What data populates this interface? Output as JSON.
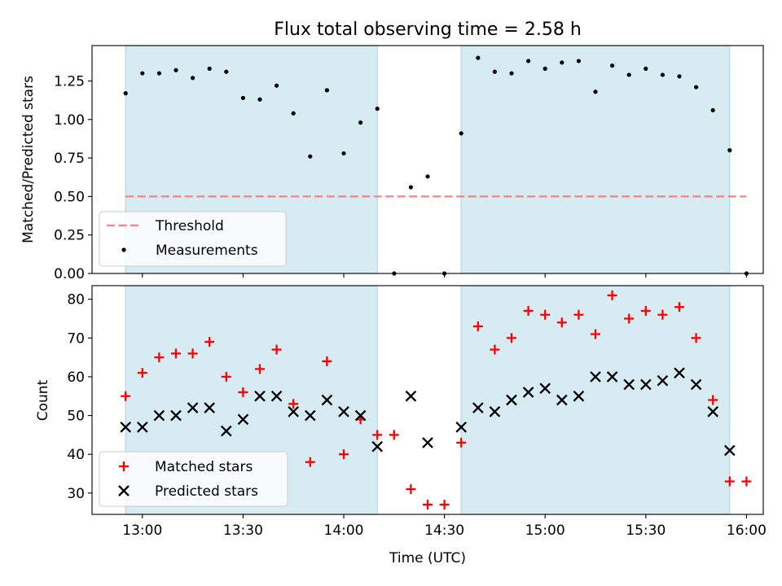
{
  "chart_data": [
    {
      "type": "scatter",
      "title": "Flux total observing time = 2.58 h",
      "ylabel": "Matched/Predicted stars",
      "ylim": [
        0,
        1.48
      ],
      "yticks": [
        0.0,
        0.25,
        0.5,
        0.75,
        1.0,
        1.25
      ],
      "ytick_labels": [
        "0.00",
        "0.25",
        "0.50",
        "0.75",
        "1.00",
        "1.25"
      ],
      "threshold": 0.5,
      "legend": [
        "Threshold",
        "Measurements"
      ],
      "legend_position": "lower-left",
      "shaded_intervals": [
        [
          "12:55",
          "14:10"
        ],
        [
          "14:35",
          "15:55"
        ]
      ],
      "series": [
        {
          "name": "Measurements",
          "x": [
            "12:55",
            "13:00",
            "13:05",
            "13:10",
            "13:15",
            "13:20",
            "13:25",
            "13:30",
            "13:35",
            "13:40",
            "13:45",
            "13:50",
            "13:55",
            "14:00",
            "14:05",
            "14:10",
            "14:15",
            "14:20",
            "14:25",
            "14:30",
            "14:35",
            "14:40",
            "14:45",
            "14:50",
            "14:55",
            "15:00",
            "15:05",
            "15:10",
            "15:15",
            "15:20",
            "15:25",
            "15:30",
            "15:35",
            "15:40",
            "15:45",
            "15:50",
            "15:55",
            "16:00"
          ],
          "values": [
            1.17,
            1.3,
            1.3,
            1.32,
            1.27,
            1.33,
            1.31,
            1.14,
            1.13,
            1.22,
            1.04,
            0.76,
            1.19,
            0.78,
            0.98,
            1.07,
            0.0,
            0.56,
            0.63,
            0.0,
            0.91,
            1.4,
            1.31,
            1.3,
            1.38,
            1.33,
            1.37,
            1.38,
            1.18,
            1.35,
            1.29,
            1.33,
            1.29,
            1.28,
            1.21,
            1.06,
            0.8,
            0.0
          ]
        }
      ]
    },
    {
      "type": "scatter",
      "xlabel": "Time (UTC)",
      "ylabel": "Count",
      "ylim": [
        24.5,
        83.5
      ],
      "yticks": [
        30,
        40,
        50,
        60,
        70,
        80
      ],
      "ytick_labels": [
        "30",
        "40",
        "50",
        "60",
        "70",
        "80"
      ],
      "xticks": [
        "13:00",
        "13:30",
        "14:00",
        "14:30",
        "15:00",
        "15:30",
        "16:00"
      ],
      "xlim": [
        "12:45",
        "16:05"
      ],
      "legend": [
        "Matched stars",
        "Predicted stars"
      ],
      "legend_position": "lower-left",
      "shaded_intervals": [
        [
          "12:55",
          "14:10"
        ],
        [
          "14:35",
          "15:55"
        ]
      ],
      "series": [
        {
          "name": "Matched stars",
          "x": [
            "12:55",
            "13:00",
            "13:05",
            "13:10",
            "13:15",
            "13:20",
            "13:25",
            "13:30",
            "13:35",
            "13:40",
            "13:45",
            "13:50",
            "13:55",
            "14:00",
            "14:05",
            "14:10",
            "14:15",
            "14:20",
            "14:25",
            "14:30",
            "14:35",
            "14:40",
            "14:45",
            "14:50",
            "14:55",
            "15:00",
            "15:05",
            "15:10",
            "15:15",
            "15:20",
            "15:25",
            "15:30",
            "15:35",
            "15:40",
            "15:45",
            "15:50",
            "15:55",
            "16:00"
          ],
          "values": [
            55,
            61,
            65,
            66,
            66,
            69,
            60,
            56,
            62,
            67,
            53,
            38,
            64,
            40,
            49,
            45,
            45,
            31,
            27,
            27,
            43,
            73,
            67,
            70,
            77,
            76,
            74,
            76,
            71,
            81,
            75,
            77,
            76,
            78,
            70,
            54,
            33,
            33
          ]
        },
        {
          "name": "Predicted stars",
          "x": [
            "12:55",
            "13:00",
            "13:05",
            "13:10",
            "13:15",
            "13:20",
            "13:25",
            "13:30",
            "13:35",
            "13:40",
            "13:45",
            "13:50",
            "13:55",
            "14:00",
            "14:05",
            "14:10",
            "14:20",
            "14:25",
            "14:35",
            "14:40",
            "14:45",
            "14:50",
            "14:55",
            "15:00",
            "15:05",
            "15:10",
            "15:15",
            "15:20",
            "15:25",
            "15:30",
            "15:35",
            "15:40",
            "15:45",
            "15:50",
            "15:55"
          ],
          "values": [
            47,
            47,
            50,
            50,
            52,
            52,
            46,
            49,
            55,
            55,
            51,
            50,
            54,
            51,
            50,
            42,
            55,
            43,
            47,
            52,
            51,
            54,
            56,
            57,
            54,
            55,
            60,
            60,
            58,
            58,
            59,
            61,
            58,
            51,
            41
          ]
        }
      ]
    }
  ],
  "colors": {
    "shade": "#add8e6",
    "measurements": "#000000",
    "threshold": "#ff7f7f",
    "matched": "#ff0000",
    "predicted": "#000000"
  }
}
